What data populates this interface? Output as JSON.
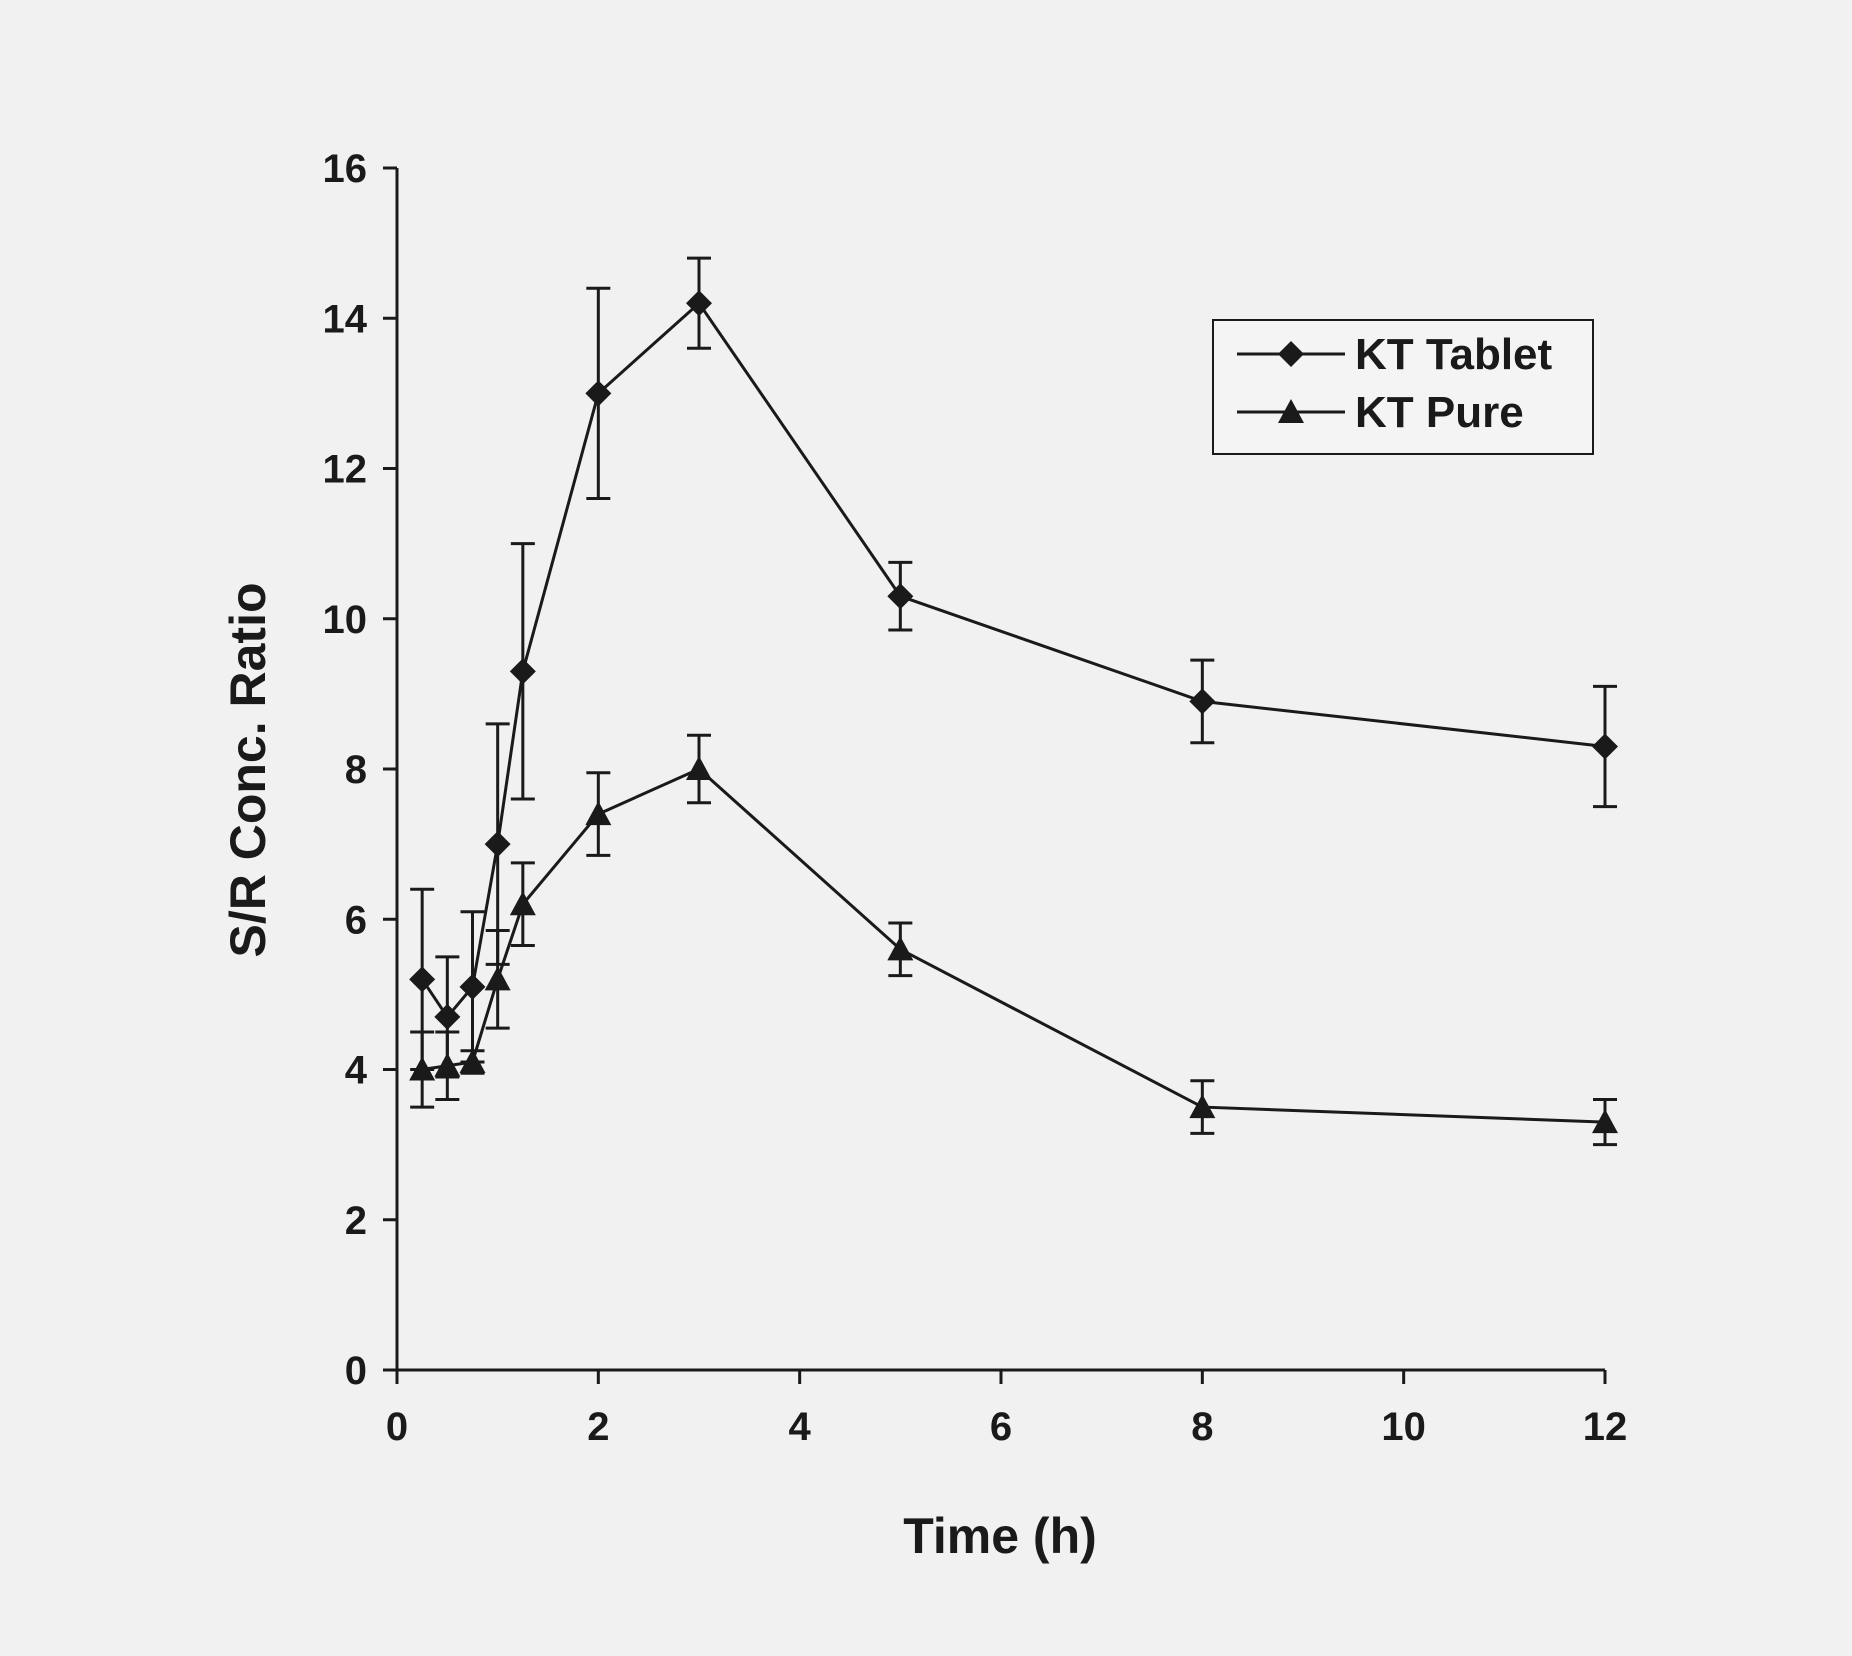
{
  "chart_data": {
    "type": "line",
    "xlabel": "Time (h)",
    "ylabel": "S/R Conc. Ratio",
    "xlim": [
      0,
      12
    ],
    "ylim": [
      0,
      16
    ],
    "xticks": [
      0,
      2,
      4,
      6,
      8,
      10,
      12
    ],
    "yticks": [
      0,
      2,
      4,
      6,
      8,
      10,
      12,
      14,
      16
    ],
    "grid": false,
    "legend_position": "top-right",
    "series": [
      {
        "name": "KT Tablet",
        "marker": "diamond",
        "x": [
          0.25,
          0.5,
          0.75,
          1,
          1.25,
          2,
          3,
          5,
          8,
          12
        ],
        "y": [
          5.2,
          4.7,
          5.1,
          7.0,
          9.3,
          13.0,
          14.2,
          10.3,
          8.9,
          8.3
        ],
        "err": [
          1.2,
          0.8,
          1.0,
          1.6,
          1.7,
          1.4,
          0.6,
          0.45,
          0.55,
          0.8
        ]
      },
      {
        "name": "KT Pure",
        "marker": "triangle",
        "x": [
          0.25,
          0.5,
          0.75,
          1,
          1.25,
          2,
          3,
          5,
          8,
          12
        ],
        "y": [
          4.0,
          4.05,
          4.1,
          5.2,
          6.2,
          7.4,
          8.0,
          5.6,
          3.5,
          3.3
        ],
        "err": [
          0.5,
          0.45,
          0.15,
          0.65,
          0.55,
          0.55,
          0.45,
          0.35,
          0.35,
          0.3
        ]
      }
    ]
  }
}
